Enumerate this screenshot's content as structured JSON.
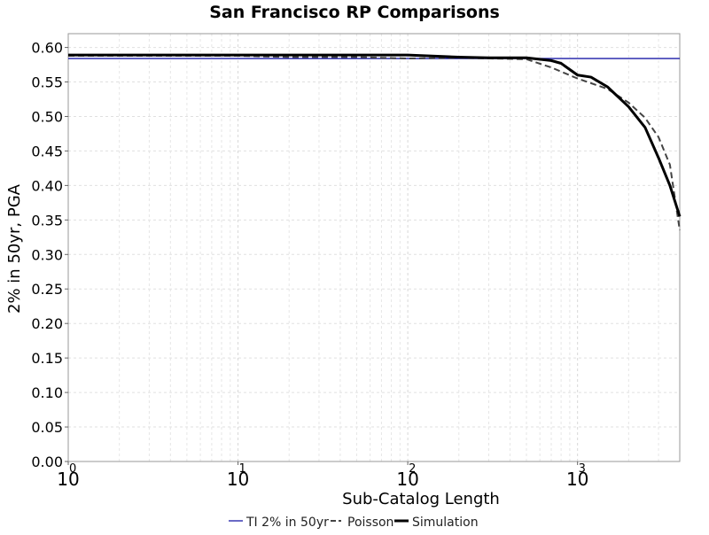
{
  "chart_data": {
    "type": "line",
    "title": "San Francisco RP Comparisons",
    "xlabel": "Sub-Catalog Length",
    "ylabel": "2% in 50yr, PGA",
    "x_scale": "log",
    "xlim": [
      1,
      4000
    ],
    "ylim": [
      0,
      0.62
    ],
    "grid": true,
    "legend_position": "bottom",
    "x_ticks": [
      {
        "value": 1,
        "base": "10",
        "exp": "0"
      },
      {
        "value": 10,
        "base": "10",
        "exp": "1"
      },
      {
        "value": 100,
        "base": "10",
        "exp": "2"
      },
      {
        "value": 1000,
        "base": "10",
        "exp": "3"
      }
    ],
    "y_ticks": [
      "0.00",
      "0.05",
      "0.10",
      "0.15",
      "0.20",
      "0.25",
      "0.30",
      "0.35",
      "0.40",
      "0.45",
      "0.50",
      "0.55",
      "0.60"
    ],
    "series": [
      {
        "name": "TI 2% in 50yr",
        "color": "#1a1aa6",
        "style": "solid-thin",
        "x": [
          1,
          4000
        ],
        "y": [
          0.584,
          0.584
        ]
      },
      {
        "name": "Poisson",
        "color": "#444444",
        "style": "dashed",
        "x": [
          1,
          2,
          5,
          10,
          20,
          50,
          100,
          200,
          500,
          700,
          1000,
          1500,
          2000,
          2500,
          3000,
          3500,
          4000
        ],
        "y": [
          0.588,
          0.588,
          0.588,
          0.588,
          0.586,
          0.586,
          0.584,
          0.585,
          0.583,
          0.571,
          0.555,
          0.54,
          0.52,
          0.498,
          0.47,
          0.43,
          0.335
        ]
      },
      {
        "name": "Simulation",
        "color": "#000000",
        "style": "solid-thick",
        "x": [
          1,
          2,
          5,
          10,
          20,
          50,
          100,
          200,
          300,
          500,
          700,
          800,
          1000,
          1200,
          1500,
          2000,
          2500,
          3000,
          3500,
          4000
        ],
        "y": [
          0.589,
          0.589,
          0.589,
          0.589,
          0.589,
          0.589,
          0.589,
          0.586,
          0.585,
          0.585,
          0.581,
          0.577,
          0.56,
          0.557,
          0.543,
          0.514,
          0.484,
          0.44,
          0.4,
          0.355
        ]
      }
    ]
  }
}
